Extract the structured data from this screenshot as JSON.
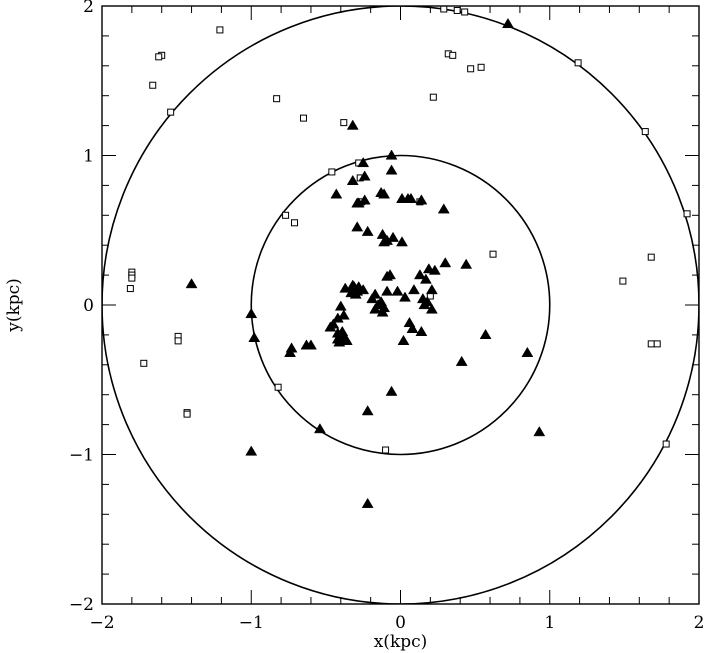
{
  "chart_data": {
    "type": "scatter",
    "title": "",
    "xlabel": "x(kpc)",
    "ylabel": "y(kpc)",
    "xlim": [
      -2,
      2
    ],
    "ylim": [
      -2,
      2
    ],
    "xticks": [
      -2,
      -1,
      0,
      1,
      2
    ],
    "yticks": [
      -2,
      -1,
      0,
      1,
      2
    ],
    "xtick_labels": [
      "−2",
      "−1",
      "0",
      "1",
      "2"
    ],
    "ytick_labels": [
      "−2",
      "−1",
      "0",
      "1",
      "2"
    ],
    "minor_tick_step": 0.2,
    "grid": false,
    "circles": [
      {
        "center": [
          0,
          0
        ],
        "radius": 1
      },
      {
        "center": [
          0,
          0
        ],
        "radius": 2
      }
    ],
    "series": [
      {
        "marker": "open-square",
        "points": [
          [
            0.29,
            1.98
          ],
          [
            0.38,
            1.97
          ],
          [
            0.43,
            1.96
          ],
          [
            -1.21,
            1.84
          ],
          [
            -1.6,
            1.67
          ],
          [
            -1.62,
            1.66
          ],
          [
            0.32,
            1.68
          ],
          [
            0.35,
            1.67
          ],
          [
            0.54,
            1.59
          ],
          [
            0.47,
            1.58
          ],
          [
            1.19,
            1.62
          ],
          [
            -1.66,
            1.47
          ],
          [
            -0.83,
            1.38
          ],
          [
            0.22,
            1.39
          ],
          [
            -1.54,
            1.29
          ],
          [
            -0.65,
            1.25
          ],
          [
            -0.38,
            1.22
          ],
          [
            1.64,
            1.16
          ],
          [
            -0.28,
            0.95
          ],
          [
            -0.46,
            0.89
          ],
          [
            -0.27,
            0.85
          ],
          [
            -0.26,
            0.69
          ],
          [
            0.13,
            0.69
          ],
          [
            1.92,
            0.61
          ],
          [
            -0.77,
            0.6
          ],
          [
            -0.71,
            0.55
          ],
          [
            0.62,
            0.34
          ],
          [
            1.68,
            0.32
          ],
          [
            -1.8,
            0.22
          ],
          [
            -1.8,
            0.2
          ],
          [
            -1.8,
            0.18
          ],
          [
            0.2,
            0.06
          ],
          [
            -1.81,
            0.11
          ],
          [
            1.49,
            0.16
          ],
          [
            -1.49,
            -0.21
          ],
          [
            -1.49,
            -0.24
          ],
          [
            1.68,
            -0.26
          ],
          [
            1.72,
            -0.26
          ],
          [
            -1.72,
            -0.39
          ],
          [
            -0.82,
            -0.55
          ],
          [
            -1.43,
            -0.72
          ],
          [
            -1.43,
            -0.73
          ],
          [
            1.78,
            -0.93
          ],
          [
            -0.1,
            -0.97
          ]
        ]
      },
      {
        "marker": "filled-triangle",
        "points": [
          [
            0.72,
            1.88
          ],
          [
            -0.32,
            1.2
          ],
          [
            -0.06,
            1.0
          ],
          [
            -0.25,
            0.95
          ],
          [
            -0.06,
            0.9
          ],
          [
            -0.32,
            0.83
          ],
          [
            -0.24,
            0.86
          ],
          [
            -0.13,
            0.75
          ],
          [
            -0.11,
            0.74
          ],
          [
            -0.43,
            0.74
          ],
          [
            -0.29,
            0.68
          ],
          [
            -0.24,
            0.7
          ],
          [
            -0.28,
            0.68
          ],
          [
            0.01,
            0.71
          ],
          [
            0.05,
            0.71
          ],
          [
            0.07,
            0.71
          ],
          [
            0.14,
            0.7
          ],
          [
            0.29,
            0.64
          ],
          [
            -0.29,
            0.52
          ],
          [
            -0.22,
            0.49
          ],
          [
            -0.12,
            0.47
          ],
          [
            -0.11,
            0.42
          ],
          [
            -0.09,
            0.43
          ],
          [
            -0.05,
            0.45
          ],
          [
            0.01,
            0.42
          ],
          [
            0.3,
            0.28
          ],
          [
            0.44,
            0.27
          ],
          [
            0.19,
            0.24
          ],
          [
            0.23,
            0.23
          ],
          [
            0.13,
            0.2
          ],
          [
            0.17,
            0.17
          ],
          [
            -0.09,
            0.19
          ],
          [
            -0.07,
            0.2
          ],
          [
            -1.4,
            0.14
          ],
          [
            -0.32,
            0.13
          ],
          [
            -0.31,
            0.12
          ],
          [
            -0.29,
            0.09
          ],
          [
            -0.28,
            0.12
          ],
          [
            -0.25,
            0.1
          ],
          [
            -0.3,
            0.07
          ],
          [
            -0.33,
            0.08
          ],
          [
            -0.37,
            0.11
          ],
          [
            -0.17,
            0.07
          ],
          [
            -0.09,
            0.09
          ],
          [
            -0.02,
            0.09
          ],
          [
            0.09,
            0.1
          ],
          [
            0.21,
            0.1
          ],
          [
            0.03,
            0.05
          ],
          [
            -0.19,
            0.04
          ],
          [
            -0.13,
            0.02
          ],
          [
            -0.15,
            0.0
          ],
          [
            -0.11,
            -0.02
          ],
          [
            -0.17,
            -0.03
          ],
          [
            -0.12,
            -0.05
          ],
          [
            0.15,
            0.04
          ],
          [
            0.16,
            0.0
          ],
          [
            0.18,
            0.02
          ],
          [
            0.21,
            -0.03
          ],
          [
            -0.4,
            -0.01
          ],
          [
            -0.38,
            -0.07
          ],
          [
            -0.42,
            -0.09
          ],
          [
            -0.45,
            -0.13
          ],
          [
            -0.47,
            -0.15
          ],
          [
            -0.39,
            -0.18
          ],
          [
            -0.42,
            -0.19
          ],
          [
            -0.38,
            -0.21
          ],
          [
            -0.4,
            -0.22
          ],
          [
            -0.41,
            -0.25
          ],
          [
            -0.36,
            -0.24
          ],
          [
            -0.39,
            -0.23
          ],
          [
            -0.42,
            -0.23
          ],
          [
            0.06,
            -0.12
          ],
          [
            0.08,
            -0.16
          ],
          [
            0.14,
            -0.18
          ],
          [
            0.02,
            -0.24
          ],
          [
            -1.0,
            -0.06
          ],
          [
            -0.98,
            -0.22
          ],
          [
            -0.63,
            -0.27
          ],
          [
            -0.6,
            -0.27
          ],
          [
            -0.73,
            -0.29
          ],
          [
            -0.74,
            -0.32
          ],
          [
            0.41,
            -0.38
          ],
          [
            0.57,
            -0.2
          ],
          [
            0.85,
            -0.32
          ],
          [
            -0.06,
            -0.58
          ],
          [
            -0.22,
            -0.71
          ],
          [
            0.93,
            -0.85
          ],
          [
            -0.54,
            -0.83
          ],
          [
            -1.0,
            -0.98
          ],
          [
            -0.22,
            -1.33
          ]
        ]
      }
    ]
  }
}
